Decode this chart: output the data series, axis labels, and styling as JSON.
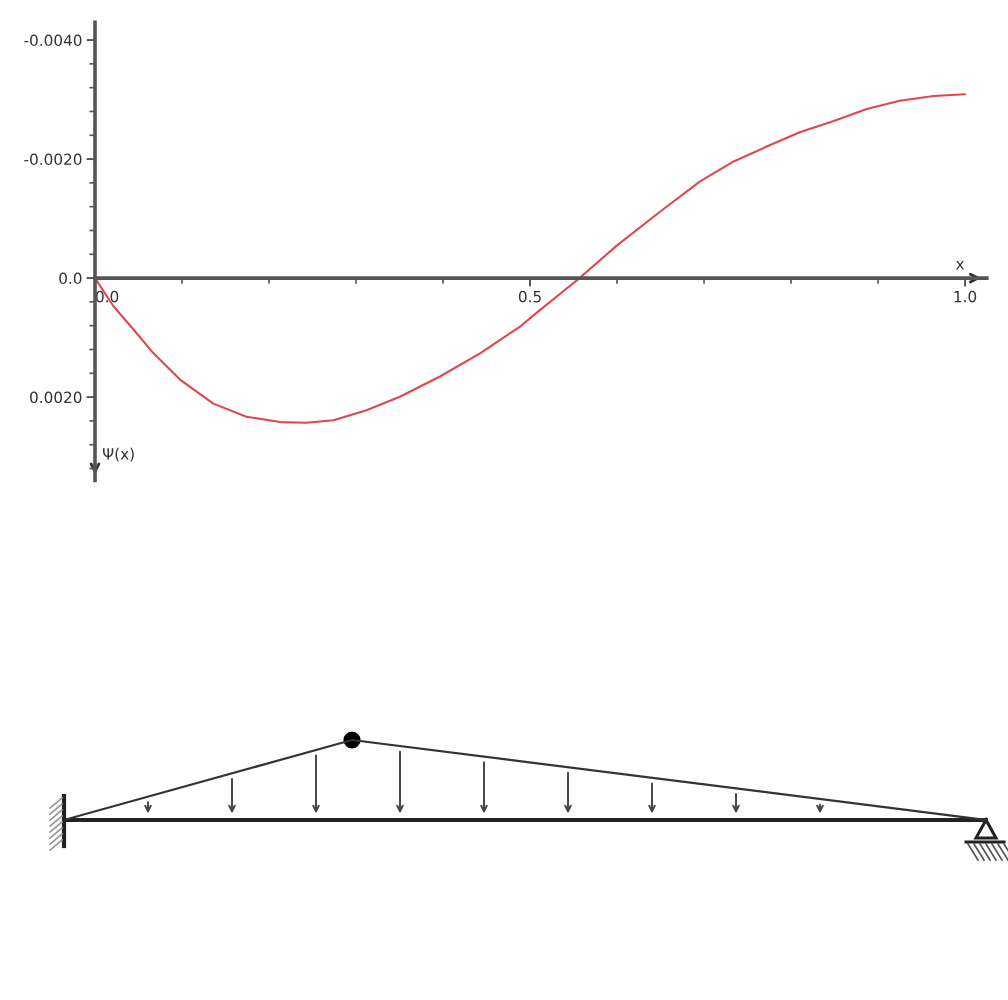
{
  "chart_data": {
    "type": "line",
    "xlabel": "x",
    "ylabel": "Ψ(x)",
    "x": [
      0,
      0.021,
      0.044,
      0.067,
      0.098,
      0.136,
      0.174,
      0.213,
      0.243,
      0.274,
      0.312,
      0.351,
      0.397,
      0.443,
      0.489,
      0.512,
      0.535,
      0.557,
      0.6,
      0.649,
      0.695,
      0.734,
      0.772,
      0.81,
      0.849,
      0.887,
      0.925,
      0.964,
      1.0
    ],
    "values": [
      0,
      0.00047,
      0.00086,
      0.00126,
      0.00171,
      0.00211,
      0.00233,
      0.00242,
      0.00243,
      0.00239,
      0.00222,
      0.00199,
      0.00165,
      0.00126,
      0.00081,
      0.00053,
      0.00026,
      0,
      -0.00055,
      -0.00111,
      -0.00162,
      -0.00196,
      -0.00221,
      -0.00245,
      -0.00264,
      -0.00284,
      -0.00298,
      -0.00306,
      -0.00309
    ],
    "color": "#e0474c",
    "marker": "none",
    "line_style": "solid",
    "xlim": [
      0,
      1.025
    ],
    "ylim": [
      0.0034,
      -0.0043
    ],
    "xticks": [
      {
        "value": 0,
        "label": "0.0"
      },
      {
        "value": 0.1,
        "label": null
      },
      {
        "value": 0.2,
        "label": null
      },
      {
        "value": 0.3,
        "label": null
      },
      {
        "value": 0.4,
        "label": null
      },
      {
        "value": 0.5,
        "label": "0.5"
      },
      {
        "value": 0.6,
        "label": null
      },
      {
        "value": 0.7,
        "label": null
      },
      {
        "value": 0.8,
        "label": null
      },
      {
        "value": 0.9,
        "label": null
      },
      {
        "value": 1.0,
        "label": "1.0"
      }
    ],
    "yticks": [
      {
        "value": -0.004,
        "label": "-0.0040"
      },
      {
        "value": -0.0036,
        "label": null
      },
      {
        "value": -0.0032,
        "label": null
      },
      {
        "value": -0.0028,
        "label": null
      },
      {
        "value": -0.0024,
        "label": null
      },
      {
        "value": -0.002,
        "label": "-0.0020"
      },
      {
        "value": -0.0016,
        "label": null
      },
      {
        "value": -0.0012,
        "label": null
      },
      {
        "value": -0.0008,
        "label": null
      },
      {
        "value": -0.0004,
        "label": null
      },
      {
        "value": 0,
        "label": "0.0"
      },
      {
        "value": 0.0004,
        "label": null
      },
      {
        "value": 0.0008,
        "label": null
      },
      {
        "value": 0.0012,
        "label": null
      },
      {
        "value": 0.0016,
        "label": null
      },
      {
        "value": 0.002,
        "label": "0.0020"
      },
      {
        "value": 0.0024,
        "label": null
      },
      {
        "value": 0.0028,
        "label": null
      },
      {
        "value": 0.0032,
        "label": null
      }
    ]
  }
}
